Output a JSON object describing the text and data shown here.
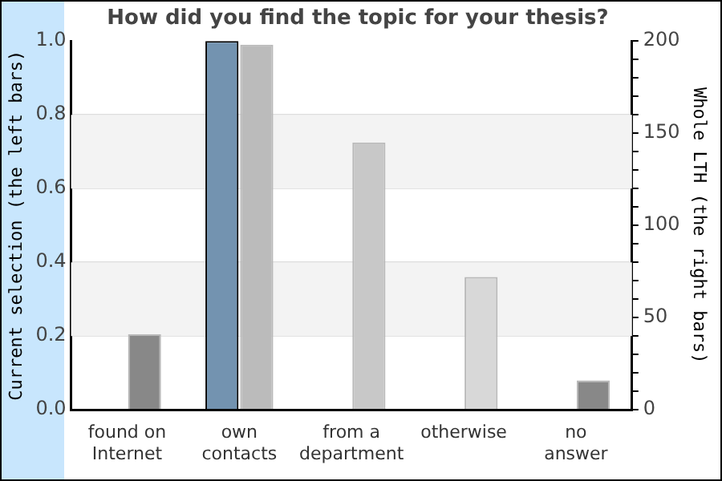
{
  "chart_data": {
    "type": "bar",
    "title": "How did you find the topic for your thesis?",
    "ylabel": "Current selection (the left bars)",
    "y2label": "Whole LTH (the right bars)",
    "categories": [
      [
        "found on",
        "Internet"
      ],
      [
        "own",
        "contacts"
      ],
      [
        "from a",
        "department"
      ],
      "otherwise",
      [
        "no",
        "answer"
      ]
    ],
    "series": [
      {
        "color": "#7393b0",
        "values": [
          0,
          1,
          0,
          0,
          0
        ]
      },
      {
        "axis": "y2",
        "colors": [
          "#888888",
          "#bbbbbb",
          "#c8c8c8",
          "#d8d8d8",
          "#888888"
        ],
        "values": [
          41,
          198,
          145,
          72,
          16
        ]
      }
    ],
    "ylim": [
      0,
      1
    ],
    "yticks": [
      {
        "value": 0,
        "label": "0.0"
      },
      {
        "value": 0.2,
        "label": "0.2"
      },
      {
        "value": 0.4,
        "label": "0.4"
      },
      {
        "value": 0.6,
        "label": "0.6"
      },
      {
        "value": 0.8,
        "label": "0.8"
      },
      {
        "value": 1,
        "label": "1.0"
      }
    ],
    "y2lim": [
      0,
      200
    ],
    "y2ticks": [
      0,
      {
        "value": 10,
        "label": null
      },
      {
        "value": 20,
        "label": null
      },
      {
        "value": 30,
        "label": null
      },
      {
        "value": 40,
        "label": null
      },
      50,
      {
        "value": 60,
        "label": null
      },
      {
        "value": 70,
        "label": null
      },
      {
        "value": 80,
        "label": null
      },
      {
        "value": 90,
        "label": null
      },
      100,
      {
        "value": 110,
        "label": null
      },
      {
        "value": 120,
        "label": null
      },
      {
        "value": 130,
        "label": null
      },
      {
        "value": 140,
        "label": null
      },
      150,
      {
        "value": 160,
        "label": null
      },
      {
        "value": 170,
        "label": null
      },
      {
        "value": 180,
        "label": null
      },
      {
        "value": 190,
        "label": null
      },
      200
    ],
    "bands": [
      {
        "axis": "y",
        "from": 0.2,
        "to": 0.4,
        "color": "#f3f3f3"
      },
      {
        "axis": "y",
        "from": 0.6,
        "to": 0.8,
        "color": "#f3f3f3"
      }
    ],
    "grid": "y",
    "legend": false
  }
}
